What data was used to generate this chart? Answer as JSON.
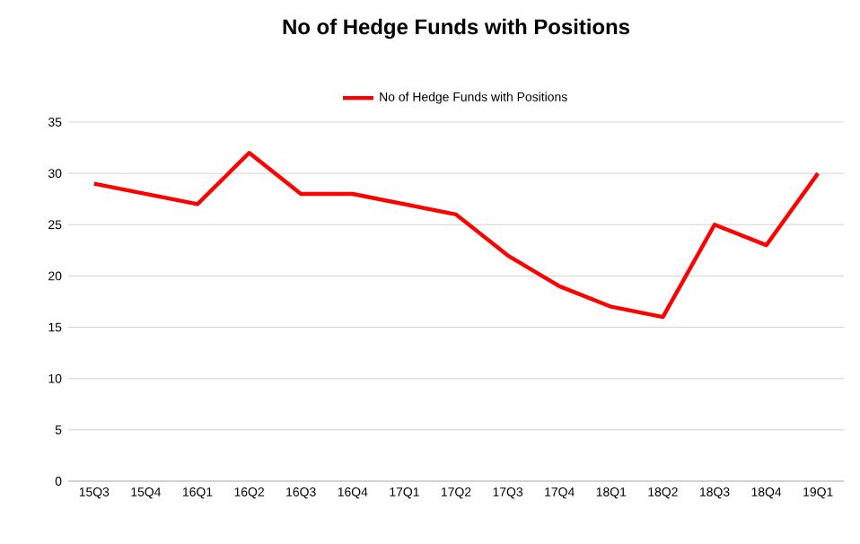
{
  "chart_data": {
    "type": "line",
    "title": "No of Hedge Funds with Positions",
    "categories": [
      "15Q3",
      "15Q4",
      "16Q1",
      "16Q2",
      "16Q3",
      "16Q4",
      "17Q1",
      "17Q2",
      "17Q3",
      "17Q4",
      "18Q1",
      "18Q2",
      "18Q3",
      "18Q4",
      "19Q1"
    ],
    "series": [
      {
        "name": "No of Hedge Funds with Positions",
        "color": "#ff0000",
        "values": [
          29,
          28,
          27,
          32,
          28,
          28,
          27,
          26,
          22,
          19,
          17,
          16,
          25,
          23,
          30
        ]
      }
    ],
    "ylim": [
      0,
      35
    ],
    "yticks": [
      0,
      5,
      10,
      15,
      20,
      25,
      30,
      35
    ],
    "grid": "y",
    "legend": "top",
    "marker": "none",
    "line_style": "solid"
  }
}
